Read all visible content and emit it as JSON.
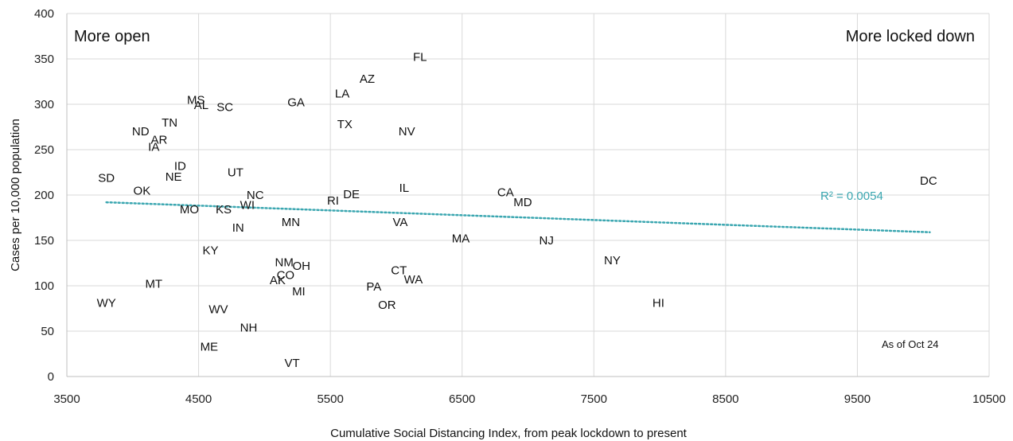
{
  "chart_data": {
    "type": "scatter",
    "xlabel": "Cumulative Social Distancing Index, from peak lockdown to present",
    "ylabel": "Cases per 10,000 population",
    "xlim": [
      3500,
      10500
    ],
    "ylim": [
      0,
      400
    ],
    "xticks": [
      3500,
      4500,
      5500,
      6500,
      7500,
      8500,
      9500,
      10500
    ],
    "yticks": [
      0,
      50,
      100,
      150,
      200,
      250,
      300,
      350,
      400
    ],
    "grid": true,
    "annotations": {
      "top_left": "More open",
      "top_right": "More locked down",
      "note": "As of Oct 24",
      "r_squared": "R² = 0.0054"
    },
    "trendline": {
      "x": [
        3800,
        10050
      ],
      "y": [
        192,
        159
      ],
      "color": "#3aa6b0",
      "style": "dotted"
    },
    "points": [
      {
        "label": "FL",
        "x": 6180,
        "y": 352
      },
      {
        "label": "AZ",
        "x": 5780,
        "y": 328
      },
      {
        "label": "LA",
        "x": 5590,
        "y": 312
      },
      {
        "label": "MS",
        "x": 4480,
        "y": 305
      },
      {
        "label": "AL",
        "x": 4520,
        "y": 299
      },
      {
        "label": "SC",
        "x": 4700,
        "y": 297
      },
      {
        "label": "GA",
        "x": 5240,
        "y": 302
      },
      {
        "label": "TX",
        "x": 5610,
        "y": 278
      },
      {
        "label": "TN",
        "x": 4280,
        "y": 280
      },
      {
        "label": "NV",
        "x": 6080,
        "y": 270
      },
      {
        "label": "ND",
        "x": 4060,
        "y": 270
      },
      {
        "label": "AR",
        "x": 4200,
        "y": 261
      },
      {
        "label": "IA",
        "x": 4160,
        "y": 253
      },
      {
        "label": "ID",
        "x": 4360,
        "y": 232
      },
      {
        "label": "NE",
        "x": 4310,
        "y": 220
      },
      {
        "label": "UT",
        "x": 4780,
        "y": 225
      },
      {
        "label": "SD",
        "x": 3800,
        "y": 219
      },
      {
        "label": "OK",
        "x": 4070,
        "y": 205
      },
      {
        "label": "IL",
        "x": 6060,
        "y": 208
      },
      {
        "label": "DE",
        "x": 5660,
        "y": 201
      },
      {
        "label": "RI",
        "x": 5520,
        "y": 194
      },
      {
        "label": "CA",
        "x": 6830,
        "y": 203
      },
      {
        "label": "MD",
        "x": 6960,
        "y": 192
      },
      {
        "label": "NC",
        "x": 4930,
        "y": 200
      },
      {
        "label": "WI",
        "x": 4870,
        "y": 189
      },
      {
        "label": "MO",
        "x": 4430,
        "y": 184
      },
      {
        "label": "KS",
        "x": 4690,
        "y": 184
      },
      {
        "label": "MN",
        "x": 5200,
        "y": 170
      },
      {
        "label": "IN",
        "x": 4800,
        "y": 164
      },
      {
        "label": "VA",
        "x": 6030,
        "y": 170
      },
      {
        "label": "MA",
        "x": 6490,
        "y": 152
      },
      {
        "label": "NJ",
        "x": 7140,
        "y": 150
      },
      {
        "label": "DC",
        "x": 10040,
        "y": 216
      },
      {
        "label": "KY",
        "x": 4590,
        "y": 139
      },
      {
        "label": "NY",
        "x": 7640,
        "y": 128
      },
      {
        "label": "NM",
        "x": 5150,
        "y": 126
      },
      {
        "label": "OH",
        "x": 5280,
        "y": 122
      },
      {
        "label": "CT",
        "x": 6020,
        "y": 117
      },
      {
        "label": "CO",
        "x": 5160,
        "y": 112
      },
      {
        "label": "AK",
        "x": 5100,
        "y": 106
      },
      {
        "label": "WA",
        "x": 6130,
        "y": 107
      },
      {
        "label": "MT",
        "x": 4160,
        "y": 102
      },
      {
        "label": "PA",
        "x": 5830,
        "y": 99
      },
      {
        "label": "MI",
        "x": 5260,
        "y": 94
      },
      {
        "label": "WY",
        "x": 3800,
        "y": 81
      },
      {
        "label": "HI",
        "x": 7990,
        "y": 81
      },
      {
        "label": "OR",
        "x": 5930,
        "y": 79
      },
      {
        "label": "WV",
        "x": 4650,
        "y": 74
      },
      {
        "label": "NH",
        "x": 4880,
        "y": 54
      },
      {
        "label": "ME",
        "x": 4580,
        "y": 33
      },
      {
        "label": "VT",
        "x": 5210,
        "y": 15
      }
    ]
  }
}
